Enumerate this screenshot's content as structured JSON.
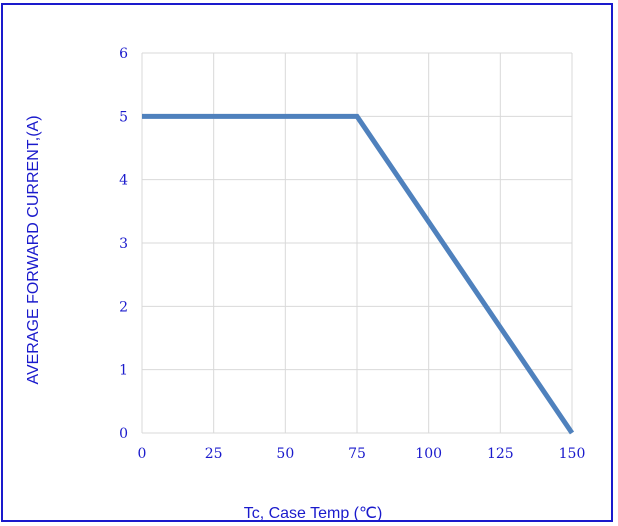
{
  "chart_data": {
    "type": "line",
    "xlabel": "Tc, Case Temp (℃)",
    "ylabel": "AVERAGE FORWARD CURRENT,(A)",
    "x_ticks": [
      "0",
      "25",
      "50",
      "75",
      "100",
      "125",
      "150"
    ],
    "y_ticks": [
      "0",
      "1",
      "2",
      "3",
      "4",
      "5",
      "6"
    ],
    "xlim": [
      0,
      150
    ],
    "ylim": [
      0,
      6
    ],
    "grid": true,
    "series": [
      {
        "x": [
          0,
          75,
          150
        ],
        "values": [
          5,
          5,
          0
        ],
        "color": "#4f81bd"
      }
    ]
  }
}
